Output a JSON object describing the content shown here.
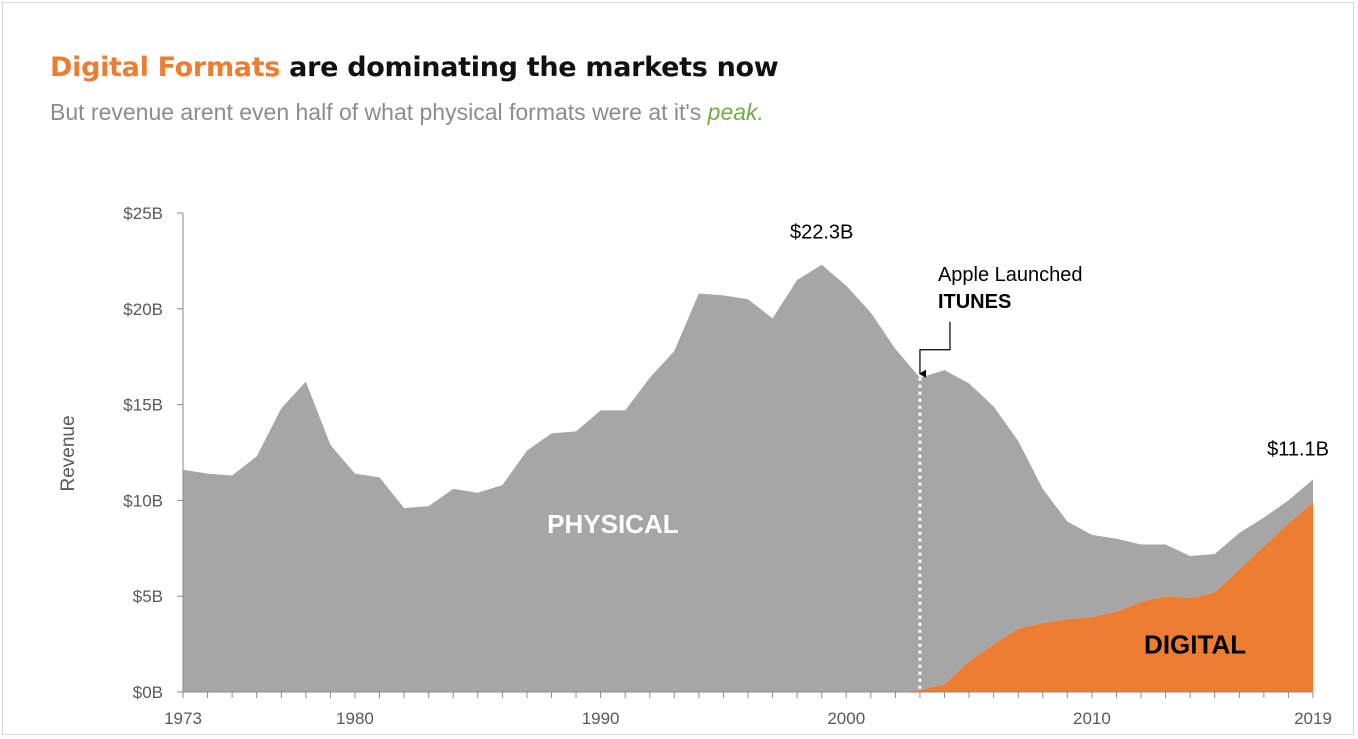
{
  "header": {
    "title_highlight": "Digital Formats",
    "title_rest": " are dominating the markets now",
    "subtitle_main": "But revenue arent even half of what physical formats were at it's ",
    "subtitle_peak": "peak."
  },
  "colors": {
    "digital": "#ED7D31",
    "physical": "#A6A6A6",
    "peak_word": "#70AD47",
    "subtitle": "#8C8C8C"
  },
  "chart_data": {
    "type": "area",
    "stacked": true,
    "xlabel": "",
    "ylabel": "Revenue",
    "xlim": [
      1973,
      2019
    ],
    "ylim": [
      0,
      25
    ],
    "x_ticks": [
      "1973",
      "1980",
      "1990",
      "2000",
      "2010",
      "2019"
    ],
    "y_ticks": [
      "$0B",
      "$5B",
      "$10B",
      "$15B",
      "$20B",
      "$25B"
    ],
    "grid": false,
    "legend": "none",
    "x": [
      1973,
      1974,
      1975,
      1976,
      1977,
      1978,
      1979,
      1980,
      1981,
      1982,
      1983,
      1984,
      1985,
      1986,
      1987,
      1988,
      1989,
      1990,
      1991,
      1992,
      1993,
      1994,
      1995,
      1996,
      1997,
      1998,
      1999,
      2000,
      2001,
      2002,
      2003,
      2004,
      2005,
      2006,
      2007,
      2008,
      2009,
      2010,
      2011,
      2012,
      2013,
      2014,
      2015,
      2016,
      2017,
      2018,
      2019
    ],
    "series": [
      {
        "name": "PHYSICAL",
        "values": [
          11.6,
          11.4,
          11.3,
          12.3,
          14.8,
          16.2,
          12.9,
          11.4,
          11.2,
          9.6,
          9.7,
          10.6,
          10.4,
          10.8,
          12.6,
          13.5,
          13.6,
          14.7,
          14.7,
          16.4,
          17.8,
          20.8,
          20.7,
          20.5,
          19.5,
          21.5,
          22.3,
          21.2,
          19.8,
          17.9,
          16.3,
          16.4,
          14.5,
          12.4,
          9.8,
          7.0,
          5.1,
          4.3,
          3.8,
          3.0,
          2.7,
          2.2,
          2.0,
          1.9,
          1.5,
          1.2,
          1.2
        ]
      },
      {
        "name": "DIGITAL",
        "values": [
          0,
          0,
          0,
          0,
          0,
          0,
          0,
          0,
          0,
          0,
          0,
          0,
          0,
          0,
          0,
          0,
          0,
          0,
          0,
          0,
          0,
          0,
          0,
          0,
          0,
          0,
          0,
          0,
          0,
          0,
          0.1,
          0.4,
          1.6,
          2.5,
          3.3,
          3.6,
          3.8,
          3.9,
          4.2,
          4.7,
          5.0,
          4.9,
          5.2,
          6.4,
          7.6,
          8.8,
          9.9
        ]
      }
    ],
    "annotations": {
      "peak_label": "$22.3B",
      "peak_year": 1999,
      "end_label": "$11.1B",
      "end_year": 2019,
      "event_line": "Apple Launched",
      "event_bold": "ITUNES",
      "event_year": 2003,
      "physical_label": "PHYSICAL",
      "digital_label": "DIGITAL"
    }
  }
}
